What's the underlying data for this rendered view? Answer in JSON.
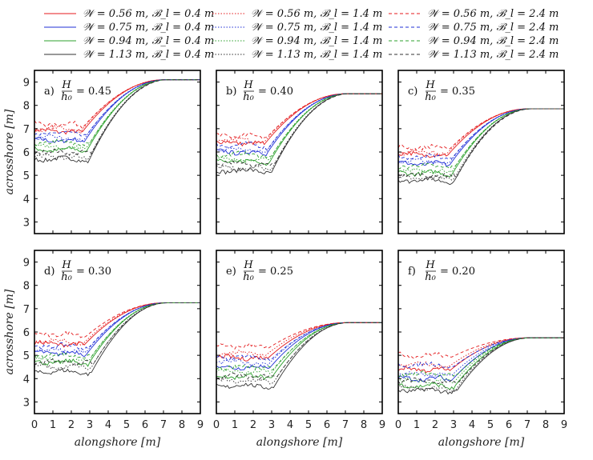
{
  "chart_data": {
    "type": "line",
    "xlabel": "alongshore [m]",
    "ylabel": "acrosshore [m]",
    "xlim": [
      0,
      9
    ],
    "ylim": [
      2.5,
      9.5
    ],
    "xticks": [
      "0",
      "1",
      "2",
      "3",
      "4",
      "5",
      "6",
      "7",
      "8",
      "9"
    ],
    "yticks": [
      "3",
      "4",
      "5",
      "6",
      "7",
      "8",
      "9"
    ],
    "colors": {
      "W056": "#e41a1c",
      "W075": "#1f2fd6",
      "W094": "#2ca02c",
      "W113": "#333333"
    },
    "legend": [
      {
        "label": "𝒲 = 0.56 m,  ℬ_l = 0.4 m",
        "color": "#e41a1c",
        "dash": "solid"
      },
      {
        "label": "𝒲 = 0.75 m,  ℬ_l = 0.4 m",
        "color": "#1f2fd6",
        "dash": "solid"
      },
      {
        "label": "𝒲 = 0.94 m,  ℬ_l = 0.4 m",
        "color": "#2ca02c",
        "dash": "solid"
      },
      {
        "label": "𝒲 = 1.13 m,  ℬ_l = 0.4 m",
        "color": "#333333",
        "dash": "solid"
      },
      {
        "label": "𝒲 = 0.56 m,  ℬ_l = 1.4 m",
        "color": "#e41a1c",
        "dash": "dot"
      },
      {
        "label": "𝒲 = 0.75 m,  ℬ_l = 1.4 m",
        "color": "#1f2fd6",
        "dash": "dot"
      },
      {
        "label": "𝒲 = 0.94 m,  ℬ_l = 1.4 m",
        "color": "#2ca02c",
        "dash": "dot"
      },
      {
        "label": "𝒲 = 1.13 m,  ℬ_l = 1.4 m",
        "color": "#333333",
        "dash": "dot"
      },
      {
        "label": "𝒲 = 0.56 m,  ℬ_l = 2.4 m",
        "color": "#e41a1c",
        "dash": "dash"
      },
      {
        "label": "𝒲 = 0.75 m,  ℬ_l = 2.4 m",
        "color": "#1f2fd6",
        "dash": "dash"
      },
      {
        "label": "𝒲 = 0.94 m,  ℬ_l = 2.4 m",
        "color": "#2ca02c",
        "dash": "dash"
      },
      {
        "label": "𝒲 = 1.13 m,  ℬ_l = 2.4 m",
        "color": "#333333",
        "dash": "dash"
      }
    ],
    "panels": [
      {
        "letter": "a)",
        "ratio": "0.45",
        "plateau": 9.1,
        "series": [
          {
            "key": "W056",
            "bl": "0.4",
            "start": 6.9
          },
          {
            "key": "W075",
            "bl": "0.4",
            "start": 6.5
          },
          {
            "key": "W094",
            "bl": "0.4",
            "start": 6.1
          },
          {
            "key": "W113",
            "bl": "0.4",
            "start": 5.7
          },
          {
            "key": "W056",
            "bl": "1.4",
            "start": 7.0
          },
          {
            "key": "W075",
            "bl": "1.4",
            "start": 6.6
          },
          {
            "key": "W094",
            "bl": "1.4",
            "start": 6.2
          },
          {
            "key": "W113",
            "bl": "1.4",
            "start": 5.8
          },
          {
            "key": "W056",
            "bl": "2.4",
            "start": 7.2
          },
          {
            "key": "W075",
            "bl": "2.4",
            "start": 6.8
          },
          {
            "key": "W094",
            "bl": "2.4",
            "start": 6.4
          },
          {
            "key": "W113",
            "bl": "2.4",
            "start": 6.0
          }
        ]
      },
      {
        "letter": "b)",
        "ratio": "0.40",
        "plateau": 8.5,
        "series": [
          {
            "key": "W056",
            "bl": "0.4",
            "start": 6.4
          },
          {
            "key": "W075",
            "bl": "0.4",
            "start": 6.0
          },
          {
            "key": "W094",
            "bl": "0.4",
            "start": 5.6
          },
          {
            "key": "W113",
            "bl": "0.4",
            "start": 5.2
          },
          {
            "key": "W056",
            "bl": "1.4",
            "start": 6.5
          },
          {
            "key": "W075",
            "bl": "1.4",
            "start": 6.1
          },
          {
            "key": "W094",
            "bl": "1.4",
            "start": 5.7
          },
          {
            "key": "W113",
            "bl": "1.4",
            "start": 5.3
          },
          {
            "key": "W056",
            "bl": "2.4",
            "start": 6.7
          },
          {
            "key": "W075",
            "bl": "2.4",
            "start": 6.3
          },
          {
            "key": "W094",
            "bl": "2.4",
            "start": 5.9
          },
          {
            "key": "W113",
            "bl": "2.4",
            "start": 5.5
          }
        ]
      },
      {
        "letter": "c)",
        "ratio": "0.35",
        "plateau": 7.85,
        "series": [
          {
            "key": "W056",
            "bl": "0.4",
            "start": 5.9
          },
          {
            "key": "W075",
            "bl": "0.4",
            "start": 5.5
          },
          {
            "key": "W094",
            "bl": "0.4",
            "start": 5.1
          },
          {
            "key": "W113",
            "bl": "0.4",
            "start": 4.8
          },
          {
            "key": "W056",
            "bl": "1.4",
            "start": 6.0
          },
          {
            "key": "W075",
            "bl": "1.4",
            "start": 5.6
          },
          {
            "key": "W094",
            "bl": "1.4",
            "start": 5.2
          },
          {
            "key": "W113",
            "bl": "1.4",
            "start": 4.9
          },
          {
            "key": "W056",
            "bl": "2.4",
            "start": 6.2
          },
          {
            "key": "W075",
            "bl": "2.4",
            "start": 5.8
          },
          {
            "key": "W094",
            "bl": "2.4",
            "start": 5.4
          },
          {
            "key": "W113",
            "bl": "2.4",
            "start": 5.0
          }
        ]
      },
      {
        "letter": "d)",
        "ratio": "0.30",
        "plateau": 7.25,
        "series": [
          {
            "key": "W056",
            "bl": "0.4",
            "start": 5.5
          },
          {
            "key": "W075",
            "bl": "0.4",
            "start": 5.1
          },
          {
            "key": "W094",
            "bl": "0.4",
            "start": 4.7
          },
          {
            "key": "W113",
            "bl": "0.4",
            "start": 4.3
          },
          {
            "key": "W056",
            "bl": "1.4",
            "start": 5.6
          },
          {
            "key": "W075",
            "bl": "1.4",
            "start": 5.2
          },
          {
            "key": "W094",
            "bl": "1.4",
            "start": 4.8
          },
          {
            "key": "W113",
            "bl": "1.4",
            "start": 4.5
          },
          {
            "key": "W056",
            "bl": "2.4",
            "start": 5.9
          },
          {
            "key": "W075",
            "bl": "2.4",
            "start": 5.4
          },
          {
            "key": "W094",
            "bl": "2.4",
            "start": 5.0
          },
          {
            "key": "W113",
            "bl": "2.4",
            "start": 4.7
          }
        ]
      },
      {
        "letter": "e)",
        "ratio": "0.25",
        "plateau": 6.4,
        "series": [
          {
            "key": "W056",
            "bl": "0.4",
            "start": 4.9
          },
          {
            "key": "W075",
            "bl": "0.4",
            "start": 4.5
          },
          {
            "key": "W094",
            "bl": "0.4",
            "start": 4.1
          },
          {
            "key": "W113",
            "bl": "0.4",
            "start": 3.7
          },
          {
            "key": "W056",
            "bl": "1.4",
            "start": 5.1
          },
          {
            "key": "W075",
            "bl": "1.4",
            "start": 4.7
          },
          {
            "key": "W094",
            "bl": "1.4",
            "start": 4.3
          },
          {
            "key": "W113",
            "bl": "1.4",
            "start": 3.9
          },
          {
            "key": "W056",
            "bl": "2.4",
            "start": 5.4
          },
          {
            "key": "W075",
            "bl": "2.4",
            "start": 4.9
          },
          {
            "key": "W094",
            "bl": "2.4",
            "start": 4.5
          },
          {
            "key": "W113",
            "bl": "2.4",
            "start": 4.1
          }
        ]
      },
      {
        "letter": "f)",
        "ratio": "0.20",
        "plateau": 5.75,
        "series": [
          {
            "key": "W056",
            "bl": "0.4",
            "start": 4.4
          },
          {
            "key": "W075",
            "bl": "0.4",
            "start": 4.0
          },
          {
            "key": "W094",
            "bl": "0.4",
            "start": 3.7
          },
          {
            "key": "W113",
            "bl": "0.4",
            "start": 3.5
          },
          {
            "key": "W056",
            "bl": "1.4",
            "start": 4.6
          },
          {
            "key": "W075",
            "bl": "1.4",
            "start": 4.2
          },
          {
            "key": "W094",
            "bl": "1.4",
            "start": 3.9
          },
          {
            "key": "W113",
            "bl": "1.4",
            "start": 3.6
          },
          {
            "key": "W056",
            "bl": "2.4",
            "start": 5.0
          },
          {
            "key": "W075",
            "bl": "2.4",
            "start": 4.6
          },
          {
            "key": "W094",
            "bl": "2.4",
            "start": 4.2
          },
          {
            "key": "W113",
            "bl": "2.4",
            "start": 3.9
          }
        ]
      }
    ]
  }
}
